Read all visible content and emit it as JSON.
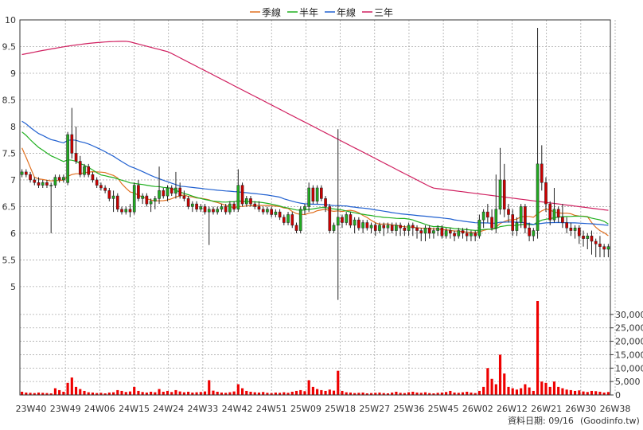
{
  "chart_data": {
    "type": "candlestick+volume",
    "legend": [
      {
        "name": "季線",
        "color": "#e07020"
      },
      {
        "name": "半年",
        "color": "#20b020"
      },
      {
        "name": "年線",
        "color": "#2060d0"
      },
      {
        "name": "三年",
        "color": "#d02060"
      }
    ],
    "price_axis": {
      "ylim": [
        4.7,
        10.0
      ],
      "ticks": [
        5,
        5.5,
        6,
        6.5,
        7,
        7.5,
        8,
        8.5,
        9,
        9.5,
        10
      ]
    },
    "volume_axis": {
      "ylim": [
        0,
        35000
      ],
      "ticks": [
        0,
        5000,
        10000,
        15000,
        20000,
        25000,
        30000
      ],
      "tick_labels": [
        "0",
        "5,000",
        "10,000",
        "15,000",
        "20,000",
        "25,000",
        "30,000"
      ]
    },
    "x_labels": [
      "23W40",
      "23W49",
      "24W06",
      "24W15",
      "24W24",
      "24W33",
      "24W42",
      "24W51",
      "25W09",
      "25W18",
      "25W27",
      "25W36",
      "25W45",
      "26W02",
      "26W12",
      "26W21",
      "26W30",
      "26W38"
    ],
    "grid": true,
    "up_color": "#22aa22",
    "down_color": "#cc0000",
    "volume_color": "#ee0000",
    "footer_date": "資料日期: 09/16",
    "footer_source": "(Goodinfo.tw)",
    "candles": [
      [
        7.1,
        7.2,
        7.05,
        7.15,
        1200
      ],
      [
        7.15,
        7.2,
        7.05,
        7.1,
        900
      ],
      [
        7.1,
        7.15,
        6.95,
        7.0,
        800
      ],
      [
        7.0,
        7.05,
        6.9,
        6.95,
        700
      ],
      [
        6.95,
        7.05,
        6.85,
        6.9,
        900
      ],
      [
        6.9,
        7.0,
        6.85,
        6.95,
        800
      ],
      [
        6.95,
        7.0,
        6.85,
        6.9,
        700
      ],
      [
        6.9,
        6.95,
        6.0,
        6.9,
        600
      ],
      [
        6.9,
        7.1,
        6.85,
        7.05,
        2500
      ],
      [
        7.05,
        7.1,
        6.95,
        7.0,
        1800
      ],
      [
        7.0,
        7.1,
        6.95,
        7.05,
        1200
      ],
      [
        6.95,
        7.9,
        6.9,
        7.85,
        4500
      ],
      [
        7.85,
        8.35,
        7.4,
        7.5,
        6500
      ],
      [
        7.5,
        8.0,
        7.3,
        7.35,
        3000
      ],
      [
        7.35,
        7.45,
        7.05,
        7.1,
        2200
      ],
      [
        7.1,
        7.3,
        7.05,
        7.25,
        1500
      ],
      [
        7.25,
        7.3,
        7.05,
        7.1,
        1000
      ],
      [
        7.1,
        7.15,
        6.95,
        7.0,
        900
      ],
      [
        7.0,
        7.05,
        6.85,
        6.9,
        700
      ],
      [
        6.9,
        6.95,
        6.8,
        6.85,
        800
      ],
      [
        6.85,
        6.9,
        6.75,
        6.8,
        600
      ],
      [
        6.8,
        6.85,
        6.6,
        6.65,
        900
      ],
      [
        6.65,
        6.8,
        6.4,
        6.7,
        1000
      ],
      [
        6.7,
        6.75,
        6.4,
        6.45,
        1800
      ],
      [
        6.45,
        6.5,
        6.35,
        6.4,
        1500
      ],
      [
        6.4,
        6.5,
        6.35,
        6.45,
        1100
      ],
      [
        6.45,
        6.55,
        6.3,
        6.4,
        1300
      ],
      [
        6.4,
        6.95,
        6.35,
        6.9,
        3000
      ],
      [
        6.9,
        7.0,
        6.6,
        6.65,
        1500
      ],
      [
        6.65,
        6.75,
        6.55,
        6.7,
        1100
      ],
      [
        6.7,
        6.75,
        6.5,
        6.55,
        900
      ],
      [
        6.55,
        6.65,
        6.4,
        6.6,
        1200
      ],
      [
        6.6,
        6.7,
        6.45,
        6.65,
        1000
      ],
      [
        6.65,
        7.25,
        6.55,
        6.8,
        2200
      ],
      [
        6.8,
        6.85,
        6.65,
        6.7,
        1200
      ],
      [
        6.7,
        6.9,
        6.6,
        6.85,
        1500
      ],
      [
        6.85,
        6.9,
        6.7,
        6.75,
        1100
      ],
      [
        6.75,
        7.15,
        6.65,
        6.85,
        1800
      ],
      [
        6.85,
        6.95,
        6.65,
        6.7,
        1300
      ],
      [
        6.7,
        6.8,
        6.6,
        6.65,
        1000
      ],
      [
        6.65,
        6.7,
        6.45,
        6.5,
        1200
      ],
      [
        6.5,
        6.6,
        6.4,
        6.55,
        900
      ],
      [
        6.55,
        6.6,
        6.4,
        6.45,
        1000
      ],
      [
        6.45,
        6.55,
        6.4,
        6.5,
        1100
      ],
      [
        6.5,
        6.55,
        6.35,
        6.4,
        1300
      ],
      [
        6.4,
        6.5,
        5.78,
        6.45,
        5500
      ],
      [
        6.45,
        6.5,
        6.35,
        6.4,
        1600
      ],
      [
        6.4,
        6.5,
        6.35,
        6.45,
        1200
      ],
      [
        6.45,
        6.55,
        6.4,
        6.5,
        900
      ],
      [
        6.5,
        6.55,
        6.35,
        6.4,
        800
      ],
      [
        6.4,
        6.6,
        6.35,
        6.55,
        1000
      ],
      [
        6.55,
        6.6,
        6.4,
        6.45,
        1300
      ],
      [
        6.45,
        7.2,
        6.4,
        6.9,
        4000
      ],
      [
        6.9,
        6.95,
        6.5,
        6.55,
        2500
      ],
      [
        6.55,
        6.7,
        6.5,
        6.65,
        1500
      ],
      [
        6.65,
        6.7,
        6.5,
        6.55,
        1200
      ],
      [
        6.55,
        6.6,
        6.45,
        6.5,
        1000
      ],
      [
        6.5,
        6.6,
        6.4,
        6.45,
        900
      ],
      [
        6.45,
        6.5,
        6.35,
        6.4,
        1100
      ],
      [
        6.4,
        6.5,
        6.35,
        6.45,
        800
      ],
      [
        6.45,
        6.5,
        6.3,
        6.35,
        700
      ],
      [
        6.35,
        6.45,
        6.3,
        6.4,
        900
      ],
      [
        6.4,
        6.45,
        6.25,
        6.3,
        800
      ],
      [
        6.3,
        6.35,
        6.15,
        6.2,
        1000
      ],
      [
        6.2,
        6.4,
        6.15,
        6.35,
        800
      ],
      [
        6.35,
        6.4,
        6.1,
        6.15,
        1200
      ],
      [
        6.15,
        6.2,
        6.0,
        6.05,
        1500
      ],
      [
        6.05,
        6.5,
        6.0,
        6.45,
        1800
      ],
      [
        6.45,
        6.55,
        6.35,
        6.5,
        1400
      ],
      [
        6.5,
        6.95,
        6.4,
        6.85,
        5500
      ],
      [
        6.85,
        6.9,
        6.55,
        6.6,
        3000
      ],
      [
        6.6,
        6.9,
        6.55,
        6.85,
        2200
      ],
      [
        6.85,
        6.9,
        6.6,
        6.65,
        1800
      ],
      [
        6.65,
        6.7,
        6.4,
        6.5,
        1500
      ],
      [
        6.5,
        6.55,
        6.0,
        6.05,
        2000
      ],
      [
        6.05,
        6.2,
        6.0,
        6.15,
        1600
      ],
      [
        6.15,
        7.95,
        4.75,
        6.3,
        9000
      ],
      [
        6.3,
        6.35,
        6.1,
        6.2,
        1500
      ],
      [
        6.2,
        6.4,
        6.15,
        6.35,
        1000
      ],
      [
        6.35,
        6.4,
        6.1,
        6.15,
        900
      ],
      [
        6.15,
        6.3,
        6.0,
        6.25,
        700
      ],
      [
        6.25,
        6.3,
        6.05,
        6.1,
        800
      ],
      [
        6.1,
        6.25,
        6.0,
        6.2,
        900
      ],
      [
        6.2,
        6.25,
        6.05,
        6.1,
        600
      ],
      [
        6.1,
        6.2,
        6.0,
        6.15,
        700
      ],
      [
        6.15,
        6.2,
        5.95,
        6.05,
        800
      ],
      [
        6.05,
        6.2,
        6.0,
        6.15,
        900
      ],
      [
        6.15,
        6.2,
        5.95,
        6.1,
        700
      ],
      [
        6.1,
        6.2,
        6.0,
        6.15,
        600
      ],
      [
        6.15,
        6.2,
        6.0,
        6.05,
        900
      ],
      [
        6.05,
        6.2,
        5.95,
        6.15,
        1200
      ],
      [
        6.15,
        6.2,
        5.95,
        6.1,
        800
      ],
      [
        6.1,
        6.15,
        5.95,
        6.05,
        700
      ],
      [
        6.05,
        6.2,
        5.95,
        6.15,
        1000
      ],
      [
        6.15,
        6.2,
        5.95,
        6.1,
        1200
      ],
      [
        6.1,
        6.15,
        5.9,
        6.05,
        900
      ],
      [
        6.05,
        6.1,
        5.85,
        6.0,
        800
      ],
      [
        6.0,
        6.15,
        5.85,
        6.1,
        1000
      ],
      [
        6.1,
        6.15,
        5.9,
        6.0,
        700
      ],
      [
        6.0,
        6.1,
        5.9,
        6.05,
        600
      ],
      [
        6.05,
        6.15,
        5.95,
        6.1,
        800
      ],
      [
        6.1,
        6.15,
        5.9,
        5.95,
        900
      ],
      [
        5.95,
        6.1,
        5.9,
        6.05,
        1100
      ],
      [
        6.05,
        6.1,
        5.9,
        6.0,
        1500
      ],
      [
        6.0,
        6.05,
        5.85,
        5.95,
        900
      ],
      [
        5.95,
        6.1,
        5.9,
        6.05,
        800
      ],
      [
        6.05,
        6.1,
        5.9,
        6.0,
        1000
      ],
      [
        6.0,
        6.1,
        5.85,
        5.95,
        1200
      ],
      [
        5.95,
        6.05,
        5.85,
        6.0,
        900
      ],
      [
        6.0,
        6.05,
        5.85,
        5.95,
        700
      ],
      [
        5.95,
        6.35,
        5.9,
        6.25,
        1500
      ],
      [
        6.25,
        6.45,
        6.1,
        6.4,
        3000
      ],
      [
        6.4,
        6.55,
        6.2,
        6.3,
        10000
      ],
      [
        6.3,
        6.45,
        6.05,
        6.1,
        6000
      ],
      [
        6.1,
        7.1,
        6.0,
        6.45,
        4000
      ],
      [
        6.45,
        7.6,
        6.35,
        7.0,
        15000
      ],
      [
        7.0,
        7.3,
        6.3,
        6.45,
        8000
      ],
      [
        6.45,
        6.55,
        6.2,
        6.35,
        3000
      ],
      [
        6.35,
        6.45,
        5.95,
        6.05,
        2500
      ],
      [
        6.05,
        6.3,
        5.95,
        6.2,
        2000
      ],
      [
        6.2,
        6.55,
        6.1,
        6.5,
        2500
      ],
      [
        6.5,
        6.55,
        6.0,
        6.1,
        4000
      ],
      [
        6.1,
        6.2,
        5.85,
        5.95,
        2800
      ],
      [
        5.95,
        6.1,
        5.85,
        6.05,
        1500
      ],
      [
        6.05,
        9.85,
        5.9,
        7.3,
        35000
      ],
      [
        7.3,
        7.65,
        6.8,
        6.95,
        5000
      ],
      [
        6.95,
        7.05,
        6.4,
        6.55,
        4500
      ],
      [
        6.55,
        6.6,
        6.15,
        6.25,
        3000
      ],
      [
        6.25,
        6.85,
        6.2,
        6.45,
        5000
      ],
      [
        6.45,
        6.5,
        6.2,
        6.3,
        3000
      ],
      [
        6.3,
        6.55,
        6.1,
        6.2,
        2500
      ],
      [
        6.2,
        6.3,
        6.0,
        6.1,
        2000
      ],
      [
        6.1,
        6.2,
        5.95,
        6.05,
        1800
      ],
      [
        6.05,
        6.15,
        5.9,
        6.1,
        1500
      ],
      [
        6.1,
        6.15,
        5.8,
        5.95,
        1700
      ],
      [
        5.95,
        6.05,
        5.75,
        5.9,
        1300
      ],
      [
        5.9,
        6.0,
        5.7,
        5.95,
        1100
      ],
      [
        5.95,
        6.05,
        5.6,
        5.85,
        1500
      ],
      [
        5.85,
        5.9,
        5.55,
        5.8,
        1400
      ],
      [
        5.8,
        5.95,
        5.55,
        5.75,
        1200
      ],
      [
        5.75,
        5.8,
        5.55,
        5.7,
        900
      ],
      [
        5.7,
        5.8,
        5.55,
        5.75,
        1100
      ]
    ]
  }
}
